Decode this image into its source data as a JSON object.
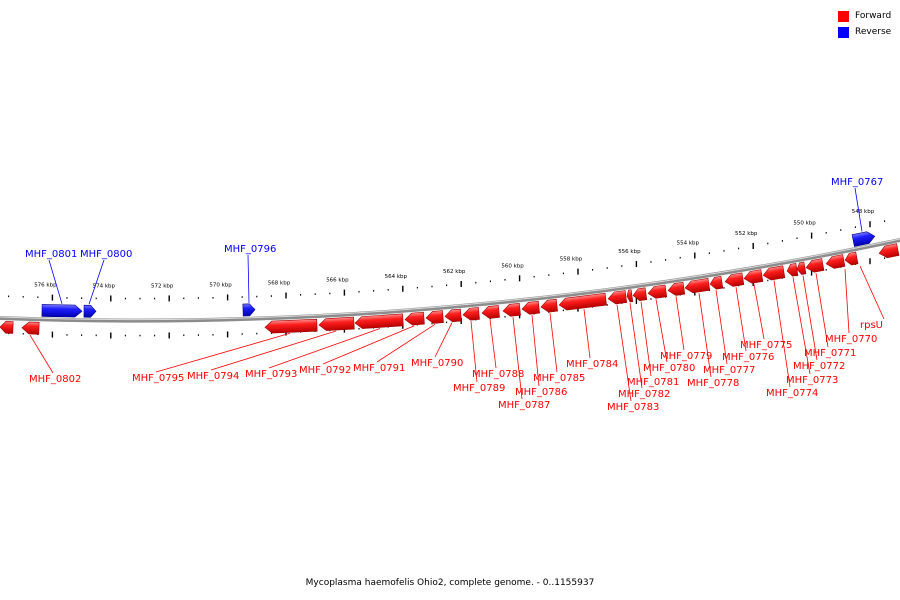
{
  "legend": {
    "forward_label": "Forward",
    "reverse_label": "Reverse",
    "forward_color": "#ff0000",
    "reverse_color": "#0000ff"
  },
  "caption": "Mycoplasma haemofelis Ohio2, complete genome. - 0..1155937",
  "ticks": [
    {
      "kbp": 548,
      "label": "548 kbp"
    },
    {
      "kbp": 550,
      "label": "550 kbp"
    },
    {
      "kbp": 552,
      "label": "552 kbp"
    },
    {
      "kbp": 554,
      "label": "554 kbp"
    },
    {
      "kbp": 556,
      "label": "556 kbp"
    },
    {
      "kbp": 558,
      "label": "558 kbp"
    },
    {
      "kbp": 560,
      "label": "560 kbp"
    },
    {
      "kbp": 562,
      "label": "562 kbp"
    },
    {
      "kbp": 564,
      "label": "564 kbp"
    },
    {
      "kbp": 566,
      "label": "566 kbp"
    },
    {
      "kbp": 568,
      "label": "568 kbp"
    },
    {
      "kbp": 570,
      "label": "570 kbp"
    },
    {
      "kbp": 572,
      "label": "572 kbp"
    },
    {
      "kbp": 574,
      "label": "574 kbp"
    },
    {
      "kbp": 576,
      "label": "576 kbp"
    }
  ],
  "genes": [
    {
      "label": "MHF_0767",
      "strand": "reverse"
    },
    {
      "label": "rpsU",
      "strand": "forward"
    },
    {
      "label": "MHF_0770",
      "strand": "forward"
    },
    {
      "label": "MHF_0771",
      "strand": "forward"
    },
    {
      "label": "MHF_0772",
      "strand": "forward"
    },
    {
      "label": "MHF_0773",
      "strand": "forward"
    },
    {
      "label": "MHF_0774",
      "strand": "forward"
    },
    {
      "label": "MHF_0775",
      "strand": "forward"
    },
    {
      "label": "MHF_0776",
      "strand": "forward"
    },
    {
      "label": "MHF_0777",
      "strand": "forward"
    },
    {
      "label": "MHF_0778",
      "strand": "forward"
    },
    {
      "label": "MHF_0779",
      "strand": "forward"
    },
    {
      "label": "MHF_0780",
      "strand": "forward"
    },
    {
      "label": "MHF_0781",
      "strand": "forward"
    },
    {
      "label": "MHF_0782",
      "strand": "forward"
    },
    {
      "label": "MHF_0783",
      "strand": "forward"
    },
    {
      "label": "MHF_0784",
      "strand": "forward"
    },
    {
      "label": "MHF_0785",
      "strand": "forward"
    },
    {
      "label": "MHF_0786",
      "strand": "forward"
    },
    {
      "label": "MHF_0787",
      "strand": "forward"
    },
    {
      "label": "MHF_0788",
      "strand": "forward"
    },
    {
      "label": "MHF_0789",
      "strand": "forward"
    },
    {
      "label": "MHF_0790",
      "strand": "forward"
    },
    {
      "label": "MHF_0791",
      "strand": "forward"
    },
    {
      "label": "MHF_0792",
      "strand": "forward"
    },
    {
      "label": "MHF_0793",
      "strand": "forward"
    },
    {
      "label": "MHF_0794",
      "strand": "forward"
    },
    {
      "label": "MHF_0795",
      "strand": "forward"
    },
    {
      "label": "MHF_0796",
      "strand": "reverse"
    },
    {
      "label": "MHF_0800",
      "strand": "reverse"
    },
    {
      "label": "MHF_0801",
      "strand": "reverse"
    },
    {
      "label": "MHF_0802",
      "strand": "forward"
    }
  ]
}
